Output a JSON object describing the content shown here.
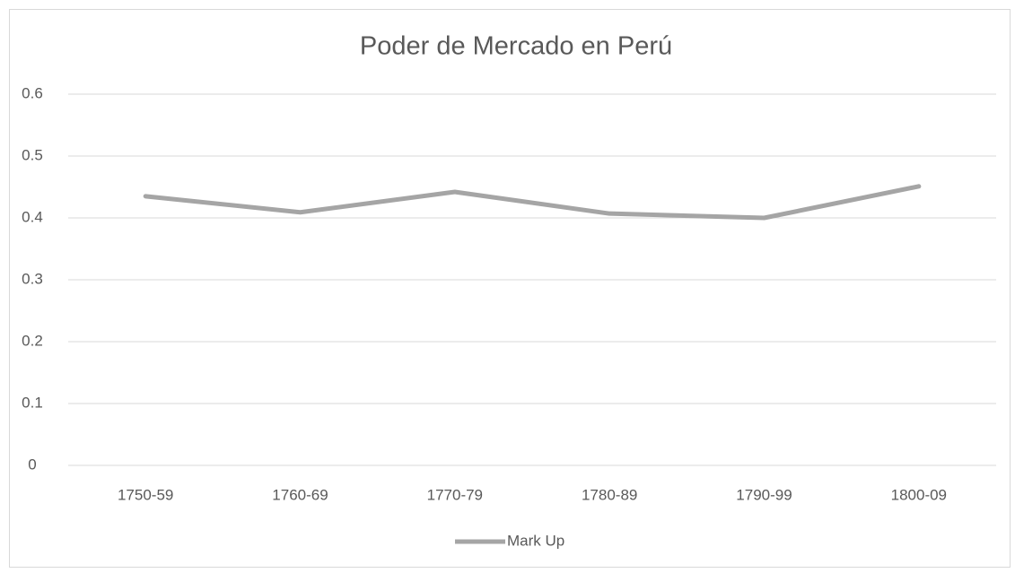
{
  "chart_data": {
    "type": "line",
    "title": "Poder de Mercado en Perú",
    "categories": [
      "1750-59",
      "1760-69",
      "1770-79",
      "1780-89",
      "1790-99",
      "1800-09"
    ],
    "series": [
      {
        "name": "Mark Up",
        "color": "#a5a5a5",
        "values": [
          0.435,
          0.409,
          0.442,
          0.407,
          0.4,
          0.451
        ]
      }
    ],
    "ylim": [
      0,
      0.6
    ],
    "yticks": [
      0,
      0.1,
      0.2,
      0.3,
      0.4,
      0.5,
      0.6
    ],
    "grid": true,
    "legend": "bottom"
  }
}
